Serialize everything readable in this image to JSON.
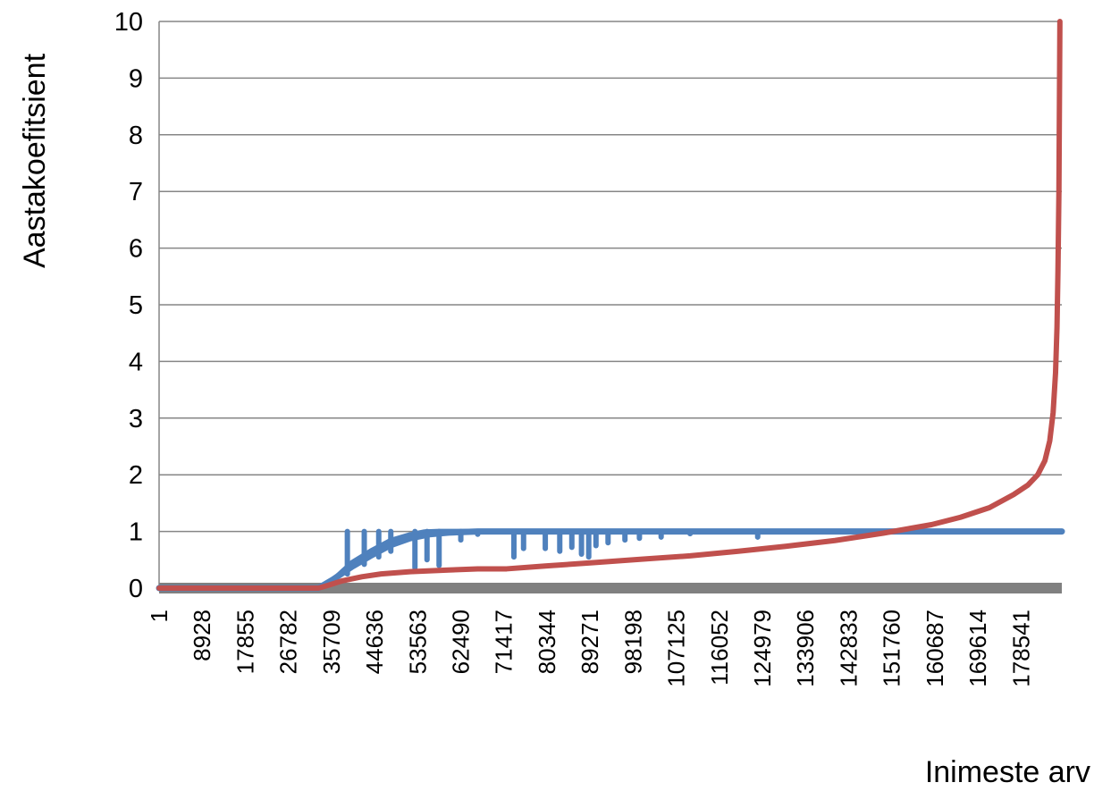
{
  "chart_data": {
    "type": "line",
    "xlabel": "Inimeste arv",
    "ylabel": "Aastakoefitsient",
    "ylim": [
      0,
      10
    ],
    "yticks": [
      "0",
      "1",
      "2",
      "3",
      "4",
      "5",
      "6",
      "7",
      "8",
      "9",
      "10"
    ],
    "xlim": [
      1,
      187000
    ],
    "xticks": [
      "1",
      "8928",
      "17855",
      "26782",
      "35709",
      "44636",
      "53563",
      "62490",
      "71417",
      "80344",
      "89271",
      "98198",
      "107125",
      "116052",
      "124979",
      "133906",
      "142833",
      "151760",
      "160687",
      "169614",
      "178541"
    ],
    "grid": true,
    "legend": "none",
    "series": [
      {
        "color": "#4f81bd",
        "points": [
          [
            1,
            0
          ],
          [
            33000,
            0
          ],
          [
            36000,
            0.15
          ],
          [
            40000,
            0.38
          ],
          [
            44000,
            0.58
          ],
          [
            48000,
            0.76
          ],
          [
            52000,
            0.88
          ],
          [
            56000,
            0.95
          ],
          [
            60000,
            0.98
          ],
          [
            66000,
            1.0
          ],
          [
            80000,
            1.0
          ],
          [
            120000,
            1.0
          ],
          [
            150000,
            1.0
          ],
          [
            187000,
            1.0
          ]
        ],
        "upper_band": [
          [
            35500,
            0.1
          ],
          [
            40000,
            0.45
          ],
          [
            44000,
            0.66
          ],
          [
            48000,
            0.84
          ],
          [
            52000,
            0.94
          ],
          [
            55000,
            0.99
          ],
          [
            58000,
            1.0
          ]
        ],
        "dips": [
          [
            39000,
            0.25
          ],
          [
            42500,
            0.42
          ],
          [
            45500,
            0.55
          ],
          [
            48000,
            0.65
          ],
          [
            53000,
            0.36
          ],
          [
            55500,
            0.5
          ],
          [
            58000,
            0.4
          ],
          [
            62500,
            0.85
          ],
          [
            66000,
            0.95
          ],
          [
            73500,
            0.55
          ],
          [
            75500,
            0.7
          ],
          [
            80000,
            0.7
          ],
          [
            83000,
            0.65
          ],
          [
            85500,
            0.72
          ],
          [
            87500,
            0.6
          ],
          [
            89000,
            0.55
          ],
          [
            90500,
            0.75
          ],
          [
            93000,
            0.8
          ],
          [
            96500,
            0.85
          ],
          [
            99500,
            0.88
          ],
          [
            104000,
            0.9
          ],
          [
            110000,
            0.96
          ],
          [
            124000,
            0.9
          ]
        ]
      },
      {
        "color": "#c0504d",
        "points": [
          [
            1,
            0
          ],
          [
            33000,
            0
          ],
          [
            35000,
            0.05
          ],
          [
            38000,
            0.13
          ],
          [
            42000,
            0.2
          ],
          [
            46000,
            0.25
          ],
          [
            52000,
            0.29
          ],
          [
            60000,
            0.32
          ],
          [
            66000,
            0.34
          ],
          [
            72000,
            0.34
          ],
          [
            80000,
            0.39
          ],
          [
            90000,
            0.45
          ],
          [
            100000,
            0.51
          ],
          [
            110000,
            0.57
          ],
          [
            120000,
            0.65
          ],
          [
            130000,
            0.74
          ],
          [
            140000,
            0.84
          ],
          [
            150000,
            0.97
          ],
          [
            160000,
            1.12
          ],
          [
            166000,
            1.25
          ],
          [
            172000,
            1.42
          ],
          [
            177000,
            1.65
          ],
          [
            180000,
            1.82
          ],
          [
            182000,
            2.0
          ],
          [
            183500,
            2.25
          ],
          [
            184500,
            2.6
          ],
          [
            185200,
            3.1
          ],
          [
            185700,
            3.8
          ],
          [
            186000,
            4.6
          ],
          [
            186200,
            5.6
          ],
          [
            186400,
            7.0
          ],
          [
            186500,
            8.5
          ],
          [
            186600,
            10
          ]
        ]
      },
      {
        "color": "#808080",
        "points": [
          [
            1,
            0
          ],
          [
            187000,
            0
          ]
        ]
      }
    ]
  }
}
